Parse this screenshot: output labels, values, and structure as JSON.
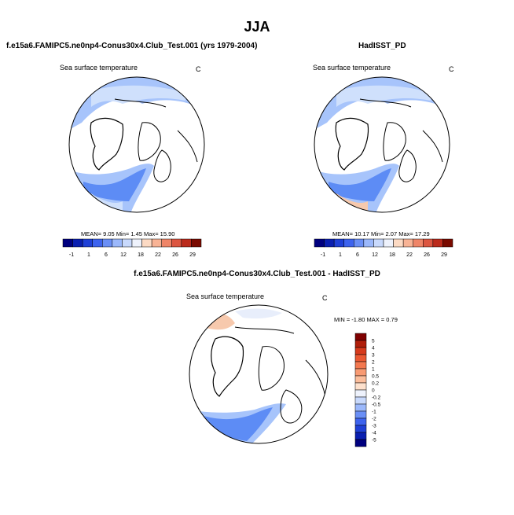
{
  "title": "JJA",
  "colors": {
    "deep": "#1a40d8",
    "mid": "#5d8cf5",
    "light": "#a7c4fb",
    "pale": "#cfe0fc",
    "ice": "#e8eefb",
    "warm": "#f7c9ad",
    "land": "#ffffff",
    "outline": "#000000"
  },
  "chart_data": [
    {
      "type": "heatmap",
      "projection": "polar-stereographic-north",
      "panel_title": "f.e15a6.FAMIPC5.ne0np4-Conus30x4.Club_Test.001 (yrs 1979-2004)",
      "variable": "Sea surface temperature",
      "units": "C",
      "stats": "MEAN=   9.05  Min=   1.45  Max=  15.90",
      "stats_values": {
        "mean": 9.05,
        "min": 1.45,
        "max": 15.9
      },
      "colorbar": {
        "orientation": "horizontal",
        "tick_labels": [
          "-1",
          "1",
          "6",
          "12",
          "18",
          "22",
          "26",
          "29"
        ],
        "colors": [
          "#00007f",
          "#0a1fb0",
          "#1f40d6",
          "#3d63ee",
          "#6a8ff6",
          "#9bb8fb",
          "#c8d9fc",
          "#eef2fc",
          "#fcdac4",
          "#f8b395",
          "#ef8568",
          "#dc5641",
          "#bb2b1c",
          "#7a0a00"
        ]
      }
    },
    {
      "type": "heatmap",
      "projection": "polar-stereographic-north",
      "panel_title": "HadISST_PD",
      "variable": "Sea surface temperature",
      "units": "C",
      "stats": "MEAN=  10.17  Min=   2.07  Max=  17.29",
      "stats_values": {
        "mean": 10.17,
        "min": 2.07,
        "max": 17.29
      },
      "colorbar": {
        "orientation": "horizontal",
        "tick_labels": [
          "-1",
          "1",
          "6",
          "12",
          "18",
          "22",
          "26",
          "29"
        ],
        "colors": [
          "#00007f",
          "#0a1fb0",
          "#1f40d6",
          "#3d63ee",
          "#6a8ff6",
          "#9bb8fb",
          "#c8d9fc",
          "#eef2fc",
          "#fcdac4",
          "#f8b395",
          "#ef8568",
          "#dc5641",
          "#bb2b1c",
          "#7a0a00"
        ]
      }
    },
    {
      "type": "heatmap",
      "projection": "polar-stereographic-north",
      "panel_title": "f.e15a6.FAMIPC5.ne0np4-Conus30x4.Club_Test.001 - HadISST_PD",
      "variable": "Sea surface temperature",
      "units": "C",
      "stats": "MIN = -1.80 MAX =  0.79",
      "stats_values": {
        "min": -1.8,
        "max": 0.79
      },
      "colorbar": {
        "orientation": "vertical",
        "tick_labels": [
          "5",
          "4",
          "3",
          "2",
          "1",
          "0.5",
          "0.2",
          "0",
          "-0.2",
          "-0.5",
          "-1",
          "-2",
          "-3",
          "-4",
          "-5"
        ],
        "colors": [
          "#7f0000",
          "#b01e0a",
          "#d63a1c",
          "#ea5832",
          "#f3784f",
          "#f89a72",
          "#fbbd9b",
          "#fde0cc",
          "#eef2fc",
          "#c8d9fc",
          "#9bb8fb",
          "#6a8ff6",
          "#3d63ee",
          "#1f40d6",
          "#0a1fb0",
          "#00007f"
        ]
      }
    }
  ]
}
